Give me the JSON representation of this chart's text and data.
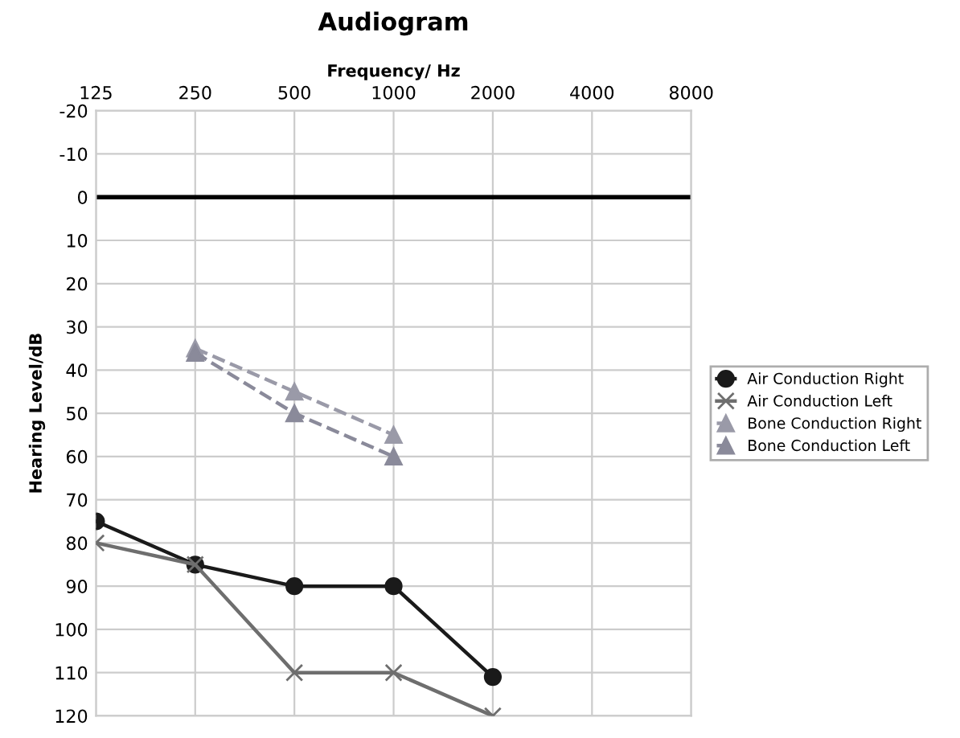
{
  "chart_data": {
    "type": "line",
    "title": "Audiogram",
    "xlabel": "Frequency/ Hz",
    "ylabel": "Hearing Level/dB",
    "categories": [
      "125",
      "250",
      "500",
      "1000",
      "2000",
      "4000",
      "8000"
    ],
    "series": [
      {
        "name": "Air Conduction Right",
        "color": "#1a1a1a",
        "marker": "circle",
        "line_style": "solid",
        "values": [
          75,
          85,
          90,
          90,
          111,
          null,
          null
        ]
      },
      {
        "name": "Air Conduction Left",
        "color": "#6e6e6e",
        "marker": "cross",
        "line_style": "solid",
        "values": [
          80,
          85,
          110,
          110,
          120,
          null,
          null
        ]
      },
      {
        "name": "Bone Conduction Right",
        "color": "#9a9aa8",
        "marker": "triangle",
        "line_style": "dashed",
        "values": [
          null,
          35,
          45,
          55,
          null,
          null,
          null
        ]
      },
      {
        "name": "Bone Conduction Left",
        "color": "#8a8a9a",
        "marker": "triangle",
        "line_style": "dashed",
        "values": [
          null,
          36,
          50,
          60,
          null,
          null,
          null
        ]
      }
    ],
    "ylim": [
      120,
      -20
    ],
    "yticks": [
      -20,
      -10,
      0,
      10,
      20,
      30,
      40,
      50,
      60,
      70,
      80,
      90,
      100,
      110,
      120
    ],
    "ref_lines": [
      {
        "axis": "y",
        "value": 0,
        "color": "#000000"
      }
    ],
    "grid": true,
    "legend": "right"
  }
}
